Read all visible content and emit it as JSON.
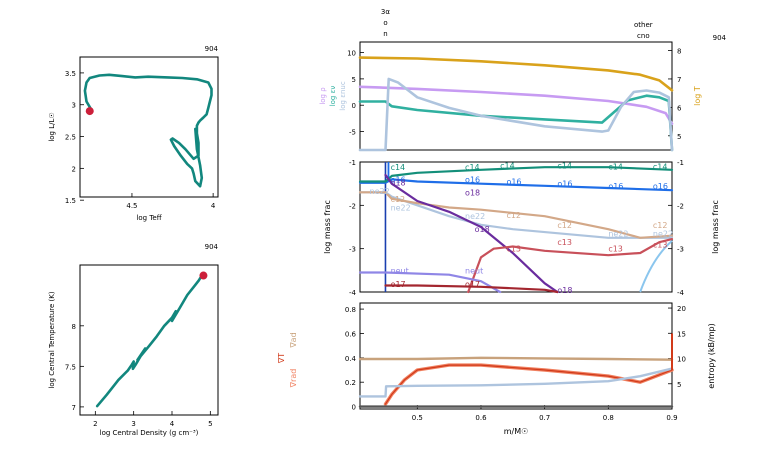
{
  "chart_data": [
    {
      "type": "line",
      "panel": "hr-diagram",
      "title": "",
      "corner_label": "904",
      "xlabel": "log Teff",
      "ylabel": "log L/L☉",
      "xlim": [
        4.82,
        3.97
      ],
      "ylim": [
        1.55,
        3.75
      ],
      "xticks": [
        4.5,
        4
      ],
      "yticks": [
        1.5,
        2,
        2.5,
        3,
        3.5
      ],
      "track": {
        "color": "#12877e",
        "x": [
          4.75,
          4.78,
          4.79,
          4.78,
          4.76,
          4.7,
          4.64,
          4.56,
          4.48,
          4.4,
          4.28,
          4.19,
          4.1,
          4.03,
          4.01,
          4.01,
          4.02,
          4.03,
          4.04,
          4.06,
          4.08,
          4.09,
          4.1,
          4.1,
          4.09,
          4.09,
          4.12,
          4.17,
          4.21,
          4.25,
          4.26,
          4.24,
          4.2,
          4.16,
          4.13,
          4.12,
          4.11,
          4.08,
          4.07,
          4.08,
          4.1,
          4.11
        ],
        "y": [
          2.92,
          3.05,
          3.22,
          3.35,
          3.42,
          3.46,
          3.47,
          3.45,
          3.43,
          3.44,
          3.43,
          3.42,
          3.4,
          3.35,
          3.25,
          3.15,
          3.05,
          2.95,
          2.85,
          2.8,
          2.75,
          2.72,
          2.67,
          2.55,
          2.4,
          2.2,
          2.15,
          2.3,
          2.4,
          2.47,
          2.45,
          2.35,
          2.2,
          2.07,
          2.0,
          1.92,
          1.8,
          1.72,
          1.85,
          2.05,
          2.3,
          2.62
        ]
      },
      "marker": {
        "x": 4.76,
        "y": 2.9,
        "color": "#cc1f3a"
      }
    },
    {
      "type": "line",
      "panel": "central-conditions",
      "title": "",
      "corner_label": "904",
      "xlabel": "log Central Density (g cm⁻³)",
      "ylabel": "log Central Temperature (K)",
      "xlim": [
        1.6,
        5.2
      ],
      "ylim": [
        6.9,
        8.75
      ],
      "xticks": [
        2,
        3,
        4,
        5
      ],
      "yticks": [
        7,
        7.5,
        8
      ],
      "track": {
        "color": "#12877e",
        "x": [
          2.05,
          2.3,
          2.6,
          2.85,
          2.95,
          3.0,
          2.98,
          3.05,
          3.15,
          3.3,
          3.1,
          3.4,
          3.6,
          3.8,
          4.0,
          4.1,
          4.0,
          4.2,
          4.4,
          4.6,
          4.7,
          4.75,
          4.8
        ],
        "y": [
          7.01,
          7.15,
          7.33,
          7.45,
          7.52,
          7.56,
          7.47,
          7.52,
          7.6,
          7.72,
          7.58,
          7.75,
          7.87,
          8.0,
          8.1,
          8.18,
          8.06,
          8.22,
          8.38,
          8.5,
          8.56,
          8.6,
          8.62
        ]
      },
      "marker": {
        "x": 4.82,
        "y": 8.62,
        "color": "#cc1f3a"
      }
    },
    {
      "type": "line",
      "panel": "structure-profile",
      "title": "",
      "corner_label": "904",
      "top_labels": [
        {
          "text": "3α",
          "x": 0.45
        },
        {
          "text": "o",
          "x": 0.45
        },
        {
          "text": "n",
          "x": 0.45
        },
        {
          "text": "other",
          "x": 0.855
        },
        {
          "text": "cno",
          "x": 0.855
        }
      ],
      "xlim": [
        0.41,
        0.9
      ],
      "ylim_left": [
        -8.5,
        12
      ],
      "ylim_right": [
        4.5,
        8.3
      ],
      "yticks_left": [
        -5,
        0,
        5,
        10
      ],
      "yticks_right": [
        5,
        6,
        7,
        8
      ],
      "ylabel_left": [
        "log ρ",
        "log εν",
        "log εnuc"
      ],
      "ylabel_right": "log T",
      "series": [
        {
          "name": "log T",
          "color": "#d9a21b",
          "axis": "right",
          "x": [
            0.41,
            0.5,
            0.6,
            0.7,
            0.8,
            0.85,
            0.88,
            0.9
          ],
          "y": [
            7.75,
            7.72,
            7.62,
            7.48,
            7.3,
            7.15,
            6.95,
            6.6
          ]
        },
        {
          "name": "log ρ",
          "color": "#c79bf2",
          "axis": "left",
          "x": [
            0.41,
            0.5,
            0.6,
            0.7,
            0.8,
            0.86,
            0.89,
            0.9
          ],
          "y": [
            3.5,
            3.1,
            2.5,
            1.8,
            0.8,
            -0.3,
            -1.5,
            -3.5
          ]
        },
        {
          "name": "log εnuc",
          "color": "#30b0a0",
          "axis": "left",
          "x": [
            0.41,
            0.45,
            0.46,
            0.5,
            0.6,
            0.7,
            0.79,
            0.83,
            0.86,
            0.88,
            0.895,
            0.9
          ],
          "y": [
            0.7,
            0.7,
            -0.2,
            -0.9,
            -2,
            -2.7,
            -3.3,
            0.9,
            1.8,
            1.5,
            0.8,
            -8.5
          ]
        },
        {
          "name": "log εν",
          "color": "#aec4de",
          "axis": "left",
          "x": [
            0.41,
            0.45,
            0.455,
            0.47,
            0.5,
            0.55,
            0.6,
            0.7,
            0.79,
            0.8,
            0.82,
            0.84,
            0.86,
            0.88,
            0.895,
            0.9
          ],
          "y": [
            -8.5,
            -8.5,
            5,
            4.3,
            1.5,
            -0.5,
            -2,
            -4,
            -5,
            -4.8,
            -0.3,
            2.5,
            2.8,
            2.4,
            1.5,
            -8.5
          ]
        }
      ]
    },
    {
      "type": "line",
      "panel": "abundance-profile",
      "xlim": [
        0.41,
        0.9
      ],
      "ylim": [
        -4,
        -1
      ],
      "yticks": [
        -4,
        -3,
        -2,
        -1
      ],
      "ylabel_left": "log mass frac",
      "ylabel_right": "log mass frac",
      "series": [
        {
          "name": "o16",
          "color": "#1f6ee8",
          "x": [
            0.41,
            0.45,
            0.46,
            0.5,
            0.6,
            0.7,
            0.8,
            0.9
          ],
          "y": [
            -1.48,
            -1.48,
            -1.4,
            -1.45,
            -1.5,
            -1.55,
            -1.6,
            -1.65
          ]
        },
        {
          "name": "c14",
          "color": "#138f7a",
          "x": [
            0.41,
            0.45,
            0.46,
            0.5,
            0.6,
            0.7,
            0.8,
            0.9
          ],
          "y": [
            -1.45,
            -1.45,
            -1.32,
            -1.25,
            -1.18,
            -1.12,
            -1.12,
            -1.18
          ]
        },
        {
          "name": "ne22",
          "color": "#aec4de",
          "x": [
            0.41,
            0.45,
            0.46,
            0.5,
            0.55,
            0.6,
            0.65,
            0.8,
            0.9
          ],
          "y": [
            -1.7,
            -1.7,
            -1.8,
            -2.0,
            -2.25,
            -2.45,
            -2.55,
            -2.75,
            -2.75
          ]
        },
        {
          "name": "c12",
          "color": "#d3a888",
          "x": [
            0.41,
            0.45,
            0.46,
            0.5,
            0.55,
            0.6,
            0.7,
            0.8,
            0.85,
            0.9
          ],
          "y": [
            -1.7,
            -1.7,
            -1.85,
            -1.95,
            -2.05,
            -2.1,
            -2.25,
            -2.55,
            -2.75,
            -2.7
          ]
        },
        {
          "name": "o18",
          "color": "#6a2c9e",
          "x": [
            0.45,
            0.46,
            0.5,
            0.55,
            0.6,
            0.65,
            0.7,
            0.72
          ],
          "y": [
            -1.3,
            -1.5,
            -1.9,
            -2.15,
            -2.5,
            -3.1,
            -3.8,
            -4
          ]
        },
        {
          "name": "c13",
          "color": "#c8505a",
          "x": [
            0.58,
            0.6,
            0.62,
            0.65,
            0.7,
            0.8,
            0.85,
            0.88,
            0.9
          ],
          "y": [
            -4,
            -3.2,
            -3.0,
            -2.95,
            -3.05,
            -3.15,
            -3.1,
            -2.85,
            -2.78
          ]
        },
        {
          "name": "neut",
          "color": "#8f86e6",
          "x": [
            0.41,
            0.45,
            0.55,
            0.6,
            0.63
          ],
          "y": [
            -3.55,
            -3.55,
            -3.6,
            -3.75,
            -4
          ]
        },
        {
          "name": "o17",
          "color": "#a3262f",
          "x": [
            0.45,
            0.5,
            0.6,
            0.7,
            0.72
          ],
          "y": [
            -3.85,
            -3.85,
            -3.88,
            -3.95,
            -4
          ]
        }
      ],
      "labels": [
        {
          "text": "c14",
          "x": 0.458,
          "y": -1.12,
          "color": "#138f7a"
        },
        {
          "text": "c14",
          "x": 0.575,
          "y": -1.12,
          "color": "#138f7a"
        },
        {
          "text": "c14",
          "x": 0.63,
          "y": -1.08,
          "color": "#138f7a"
        },
        {
          "text": "c14",
          "x": 0.72,
          "y": -1.08,
          "color": "#138f7a"
        },
        {
          "text": "c14",
          "x": 0.8,
          "y": -1.1,
          "color": "#138f7a"
        },
        {
          "text": "c14",
          "x": 0.87,
          "y": -1.1,
          "color": "#138f7a"
        },
        {
          "text": "o16",
          "x": 0.458,
          "y": -1.4,
          "color": "#1f6ee8"
        },
        {
          "text": "o16",
          "x": 0.575,
          "y": -1.4,
          "color": "#1f6ee8"
        },
        {
          "text": "o16",
          "x": 0.64,
          "y": -1.45,
          "color": "#1f6ee8"
        },
        {
          "text": "o16",
          "x": 0.72,
          "y": -1.5,
          "color": "#1f6ee8"
        },
        {
          "text": "o16",
          "x": 0.8,
          "y": -1.55,
          "color": "#1f6ee8"
        },
        {
          "text": "o16",
          "x": 0.87,
          "y": -1.55,
          "color": "#1f6ee8"
        },
        {
          "text": "ne22",
          "x": 0.425,
          "y": -1.67,
          "color": "#aec4de"
        },
        {
          "text": "ne22",
          "x": 0.458,
          "y": -2.05,
          "color": "#aec4de"
        },
        {
          "text": "ne22",
          "x": 0.575,
          "y": -2.25,
          "color": "#aec4de"
        },
        {
          "text": "ne22",
          "x": 0.8,
          "y": -2.65,
          "color": "#aec4de"
        },
        {
          "text": "ne22",
          "x": 0.87,
          "y": -2.65,
          "color": "#aec4de"
        },
        {
          "text": "c12",
          "x": 0.458,
          "y": -1.85,
          "color": "#d3a888"
        },
        {
          "text": "c12",
          "x": 0.64,
          "y": -2.22,
          "color": "#d3a888"
        },
        {
          "text": "c12",
          "x": 0.72,
          "y": -2.45,
          "color": "#d3a888"
        },
        {
          "text": "c12",
          "x": 0.87,
          "y": -2.45,
          "color": "#d3a888"
        },
        {
          "text": "o18",
          "x": 0.458,
          "y": -1.47,
          "color": "#6a2c9e"
        },
        {
          "text": "o18",
          "x": 0.575,
          "y": -1.7,
          "color": "#6a2c9e"
        },
        {
          "text": "o18",
          "x": 0.59,
          "y": -2.55,
          "color": "#6a2c9e"
        },
        {
          "text": "o18",
          "x": 0.72,
          "y": -3.95,
          "color": "#6a2c9e"
        },
        {
          "text": "c13",
          "x": 0.64,
          "y": -3.0,
          "color": "#c8505a"
        },
        {
          "text": "c13",
          "x": 0.72,
          "y": -2.85,
          "color": "#c8505a"
        },
        {
          "text": "c13",
          "x": 0.8,
          "y": -3.0,
          "color": "#c8505a"
        },
        {
          "text": "c13",
          "x": 0.87,
          "y": -2.9,
          "color": "#c8505a"
        },
        {
          "text": "neut",
          "x": 0.458,
          "y": -3.5,
          "color": "#8f86e6"
        },
        {
          "text": "neut",
          "x": 0.575,
          "y": -3.5,
          "color": "#8f86e6"
        },
        {
          "text": "o17",
          "x": 0.458,
          "y": -3.82,
          "color": "#a3262f"
        },
        {
          "text": "o17",
          "x": 0.575,
          "y": -3.82,
          "color": "#a3262f"
        }
      ]
    },
    {
      "type": "line",
      "panel": "gradients",
      "xlim": [
        0.41,
        0.9
      ],
      "xlabel": "m/M☉",
      "xticks": [
        0.5,
        0.6,
        0.7,
        0.8,
        0.9
      ],
      "ylim_left": [
        -0.02,
        0.85
      ],
      "ylim_right": [
        0,
        21
      ],
      "yticks_left": [
        0,
        0.2,
        0.4,
        0.6,
        0.8
      ],
      "yticks_right": [
        5,
        10,
        15,
        20
      ],
      "ylabel_left": [
        "∇ad",
        "∇T",
        "∇rad"
      ],
      "ylabel_right": "entropy (kB/mp)",
      "series": [
        {
          "name": "∇ad",
          "color": "#c8a27c",
          "axis": "left",
          "x": [
            0.41,
            0.5,
            0.6,
            0.7,
            0.8,
            0.9
          ],
          "y": [
            0.39,
            0.39,
            0.4,
            0.395,
            0.39,
            0.385
          ]
        },
        {
          "name": "∇rad",
          "color": "#f08060",
          "axis": "left",
          "x": [
            0.45,
            0.46,
            0.48,
            0.5,
            0.55,
            0.6,
            0.7,
            0.8,
            0.85,
            0.9
          ],
          "y": [
            0.02,
            0.1,
            0.22,
            0.3,
            0.34,
            0.34,
            0.3,
            0.25,
            0.2,
            0.3
          ]
        },
        {
          "name": "∇T",
          "color": "#d13a1a",
          "axis": "left",
          "x": [
            0.45,
            0.46,
            0.48,
            0.5,
            0.55,
            0.6,
            0.7,
            0.8,
            0.85,
            0.9
          ],
          "y": [
            0.02,
            0.1,
            0.22,
            0.3,
            0.34,
            0.34,
            0.3,
            0.25,
            0.2,
            0.3
          ]
        },
        {
          "name": "entropy",
          "color": "#aec4de",
          "axis": "right",
          "x": [
            0.41,
            0.45,
            0.451,
            0.5,
            0.6,
            0.7,
            0.8,
            0.85,
            0.9
          ],
          "y": [
            2.5,
            2.5,
            4.5,
            4.6,
            4.7,
            5.0,
            5.5,
            6.5,
            8.0
          ]
        },
        {
          "name": "floor",
          "color": "#555555",
          "axis": "left",
          "x": [
            0.41,
            0.9
          ],
          "y": [
            0,
            0
          ]
        }
      ]
    }
  ]
}
